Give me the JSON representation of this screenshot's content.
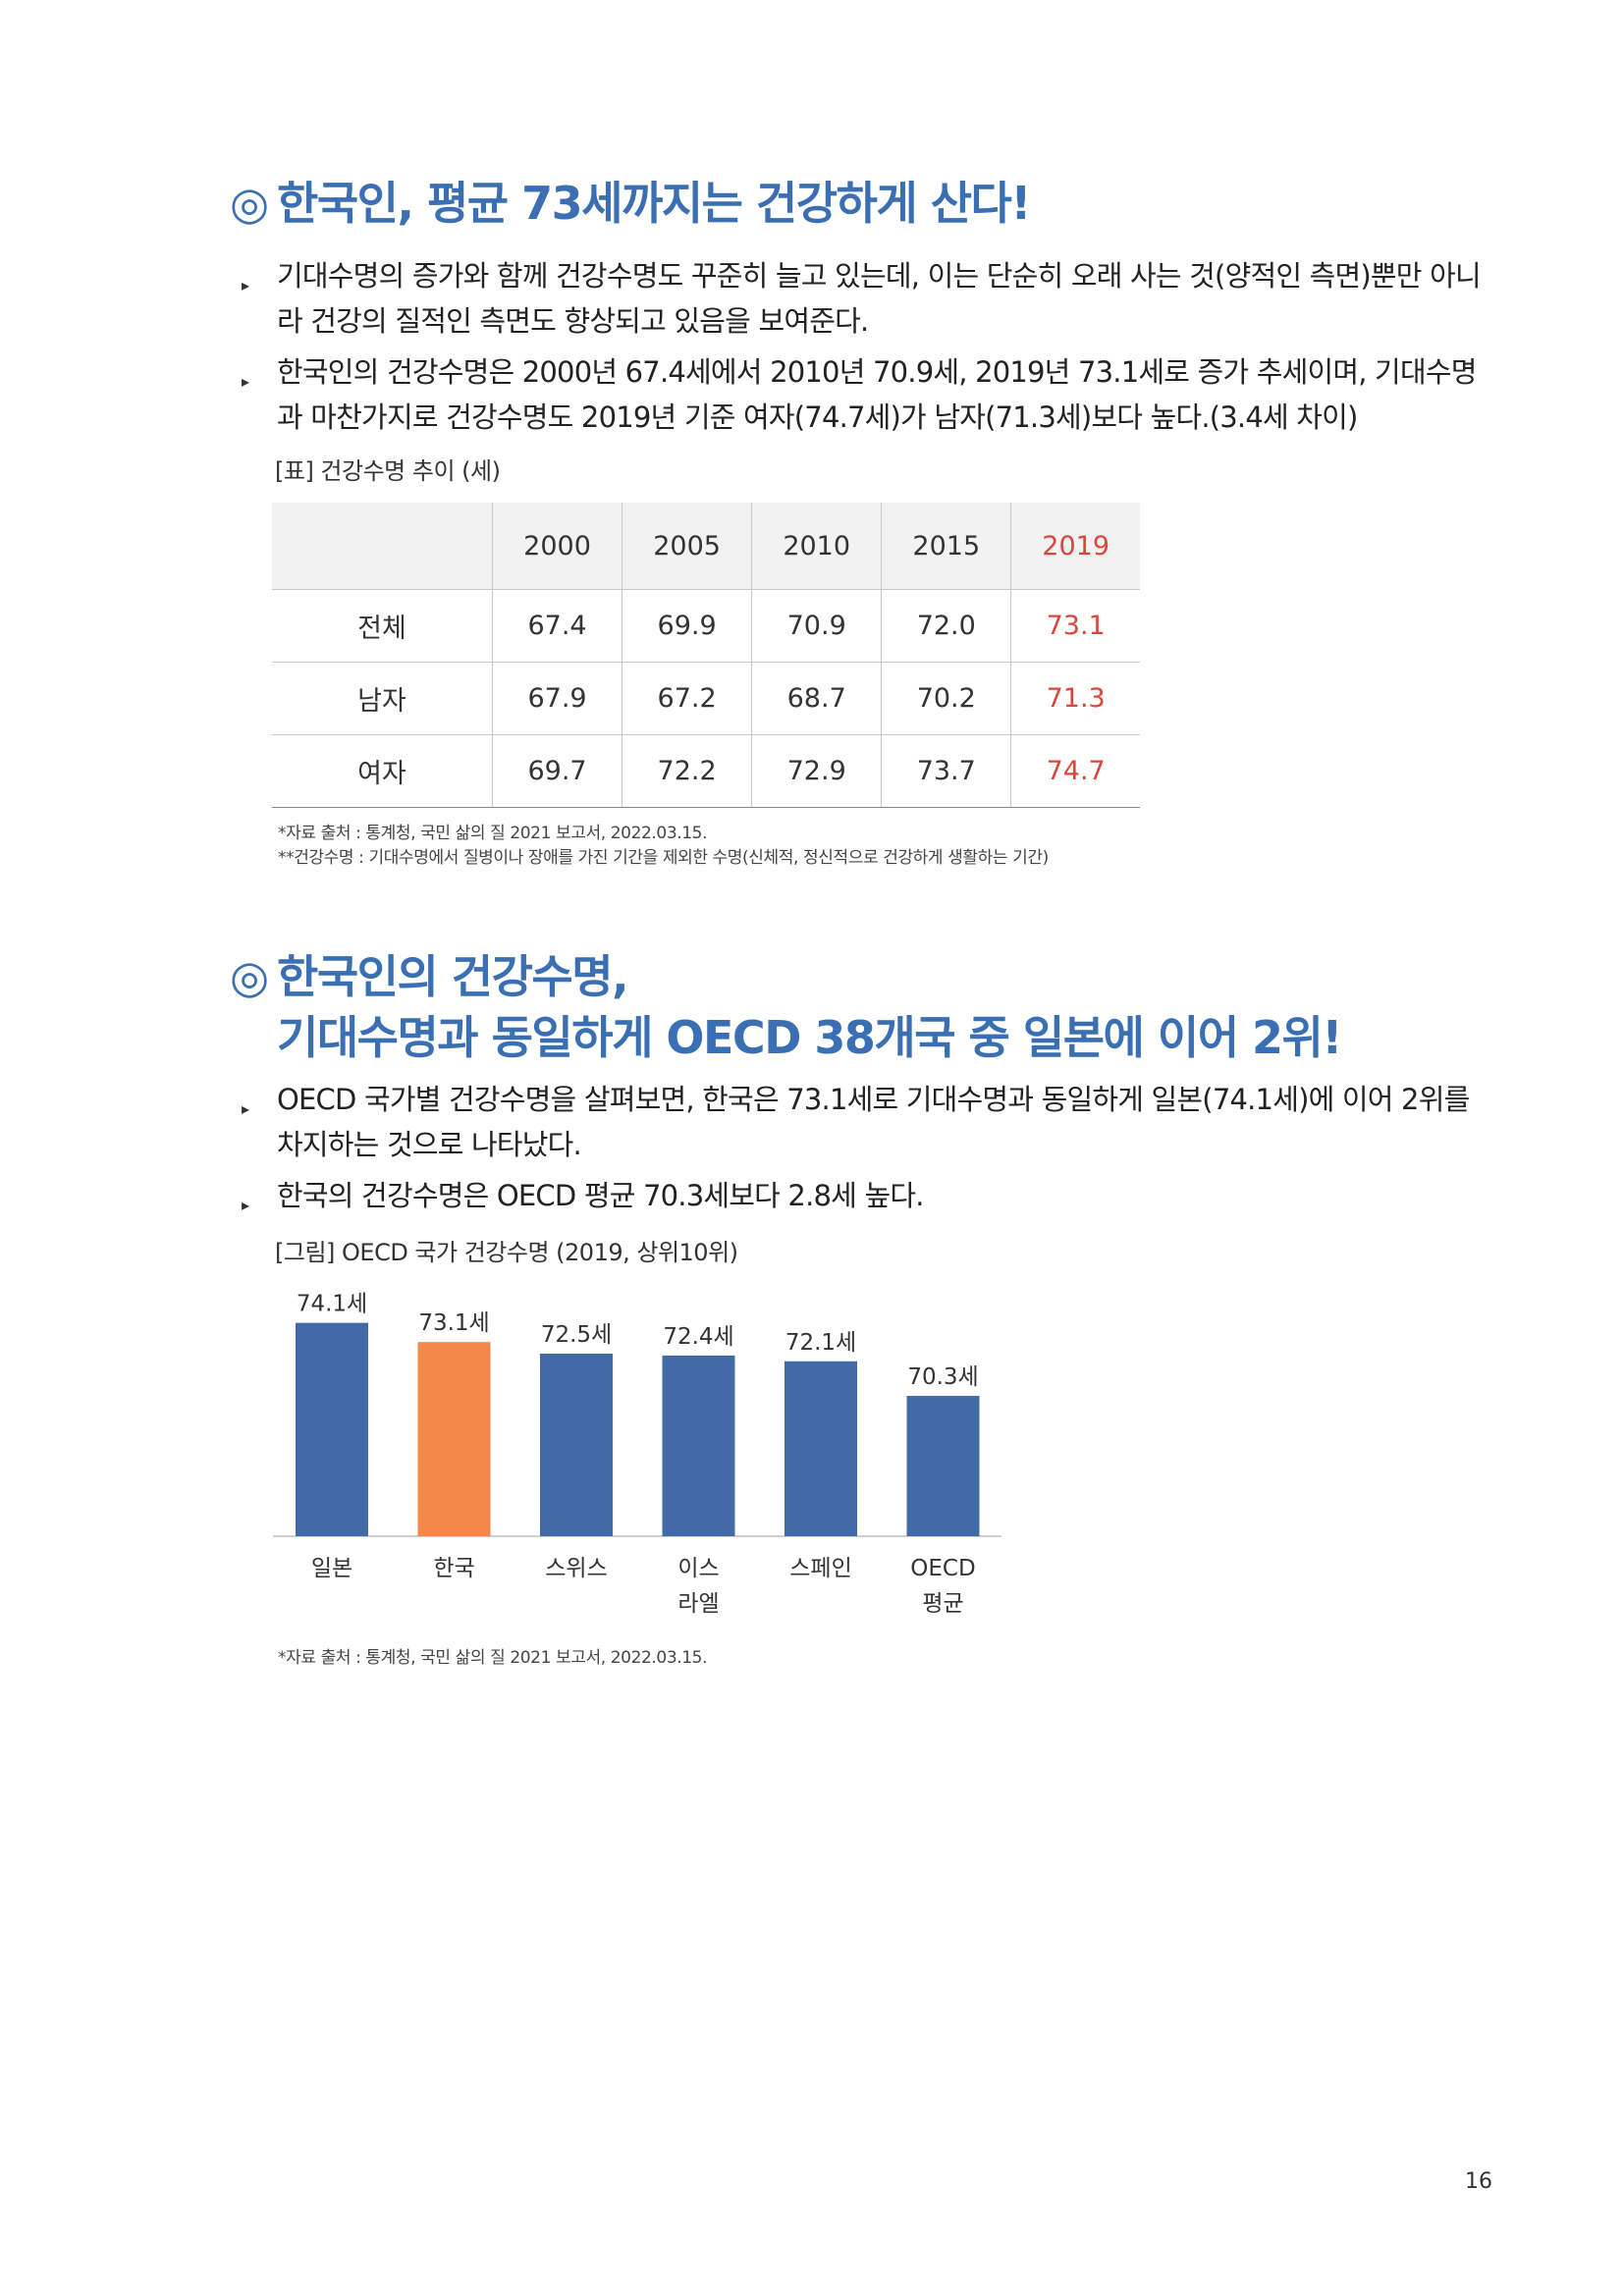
{
  "section1": {
    "mark": "◎",
    "heading": "한국인, 평균 73세까지는 건강하게 산다!",
    "bullets": [
      "기대수명의 증가와 함께 건강수명도 꾸준히 늘고 있는데, 이는 단순히 오래 사는 것(양적인 측면)뿐만 아니라 건강의 질적인 측면도 향상되고 있음을 보여준다.",
      "한국인의 건강수명은 2000년 67.4세에서 2010년 70.9세, 2019년 73.1세로 증가 추세이며, 기대수명과 마찬가지로 건강수명도 2019년 기준 여자(74.7세)가 남자(71.3세)보다 높다.(3.4세 차이)"
    ],
    "table_caption": "[표] 건강수명 추이 (세)",
    "table": {
      "headers": [
        "",
        "2000",
        "2005",
        "2010",
        "2015",
        "2019"
      ],
      "rows": [
        {
          "label": "전체",
          "values": [
            "67.4",
            "69.9",
            "70.9",
            "72.0",
            "73.1"
          ]
        },
        {
          "label": "남자",
          "values": [
            "67.9",
            "67.2",
            "68.7",
            "70.2",
            "71.3"
          ]
        },
        {
          "label": "여자",
          "values": [
            "69.7",
            "72.2",
            "72.9",
            "73.7",
            "74.7"
          ]
        }
      ],
      "highlight_color": "#d9463b"
    },
    "notes": [
      "*자료 출처 : 통계청, 국민 삶의 질 2021 보고서, 2022.03.15.",
      "**건강수명 : 기대수명에서 질병이나 장애를 가진 기간을 제외한 수명(신체적, 정신적으로 건강하게 생활하는 기간)"
    ]
  },
  "section2": {
    "mark": "◎",
    "heading_line1": "한국인의 건강수명,",
    "heading_line2": "기대수명과 동일하게 OECD 38개국 중 일본에 이어 2위!",
    "bullets": [
      "OECD 국가별 건강수명을 살펴보면, 한국은 73.1세로 기대수명과 동일하게 일본(74.1세)에 이어 2위를 차지하는 것으로 나타났다.",
      "한국의 건강수명은 OECD 평균 70.3세보다 2.8세 높다."
    ],
    "chart_caption": "[그림] OECD 국가 건강수명 (2019, 상위10위)",
    "note": "*자료 출처 : 통계청, 국민 삶의 질 2021 보고서, 2022.03.15."
  },
  "chart_data": {
    "type": "bar",
    "categories": [
      [
        "일본"
      ],
      [
        "한국"
      ],
      [
        "스위스"
      ],
      [
        "이스",
        "라엘"
      ],
      [
        "스페인"
      ],
      [
        "OECD",
        "평균"
      ]
    ],
    "values": [
      74.1,
      73.1,
      72.5,
      72.4,
      72.1,
      70.3
    ],
    "value_labels": [
      "74.1세",
      "73.1세",
      "72.5세",
      "72.4세",
      "72.1세",
      "70.3세"
    ],
    "colors": [
      "#416aa7",
      "#f2884a",
      "#416aa7",
      "#416aa7",
      "#416aa7",
      "#416aa7"
    ],
    "ylim": [
      63,
      75
    ]
  },
  "page_number": "16",
  "colors": {
    "heading": "#3a6fb3",
    "bar": "#416aa7",
    "bar_highlight": "#f2884a"
  }
}
